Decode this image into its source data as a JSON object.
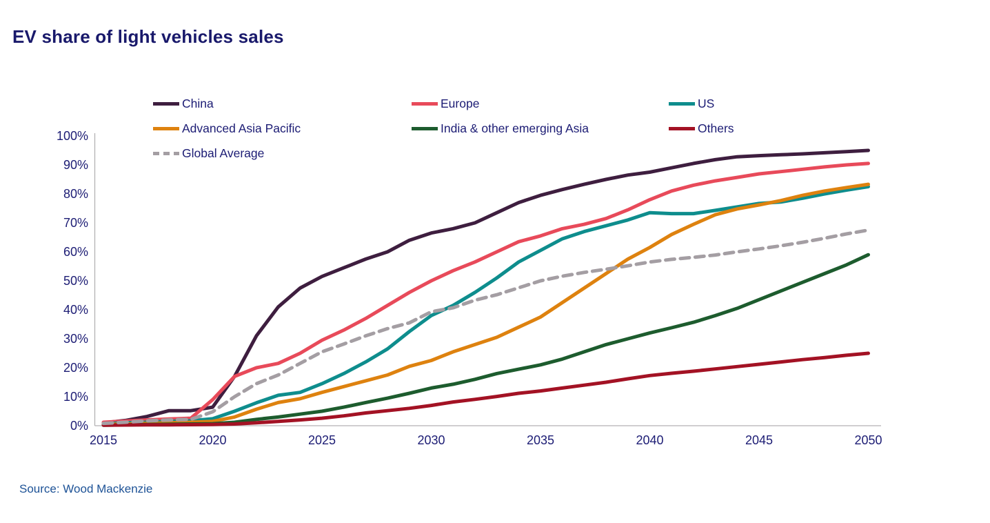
{
  "page": {
    "title": "EV share of light vehicles sales",
    "source": "Source: Wood Mackenzie"
  },
  "colors": {
    "title_text": "#19196b",
    "tick_text": "#1c1c74",
    "legend_text": "#1c1c74",
    "source_text": "#1d5296",
    "axis_line": "#b3b1b3",
    "background": "#ffffff"
  },
  "chart_data": {
    "type": "line",
    "title": "EV share of light vehicles sales",
    "xlabel": "",
    "ylabel": "",
    "grid": false,
    "legend_position": "top-left, 3 columns",
    "ylim": [
      0,
      100
    ],
    "y_ticks": [
      0,
      10,
      20,
      30,
      40,
      50,
      60,
      70,
      80,
      90,
      100
    ],
    "y_tick_suffix": "%",
    "x_ticks": [
      2015,
      2020,
      2025,
      2030,
      2035,
      2040,
      2045,
      2050
    ],
    "x": [
      2015,
      2016,
      2017,
      2018,
      2019,
      2020,
      2021,
      2022,
      2023,
      2024,
      2025,
      2026,
      2027,
      2028,
      2029,
      2030,
      2031,
      2032,
      2033,
      2034,
      2035,
      2036,
      2037,
      2038,
      2039,
      2040,
      2041,
      2042,
      2043,
      2044,
      2045,
      2046,
      2047,
      2048,
      2049,
      2050
    ],
    "series": [
      {
        "name": "China",
        "color": "#3e1e3f",
        "dash": false,
        "values": [
          1,
          1.8,
          3.2,
          5.2,
          5.2,
          6.4,
          17,
          31,
          41,
          47.5,
          51.5,
          54.5,
          57.5,
          60,
          64,
          66.5,
          68,
          70,
          73.5,
          77,
          79.5,
          81.5,
          83.3,
          85,
          86.5,
          87.5,
          89,
          90.5,
          91.8,
          92.8,
          93.2,
          93.5,
          93.8,
          94.2,
          94.6,
          95
        ]
      },
      {
        "name": "Europe",
        "color": "#e84a5a",
        "dash": false,
        "values": [
          1.2,
          1.6,
          2,
          2.3,
          2.6,
          9,
          17,
          20,
          21.5,
          25,
          29.5,
          33,
          37,
          41.5,
          46,
          50,
          53.5,
          56.5,
          60,
          63.5,
          65.5,
          68,
          69.5,
          71.5,
          74.5,
          78,
          81,
          83,
          84.5,
          85.7,
          86.9,
          87.7,
          88.5,
          89.3,
          90,
          90.5
        ]
      },
      {
        "name": "US",
        "color": "#0e8d8d",
        "dash": false,
        "values": [
          0.7,
          1,
          1.2,
          1.5,
          1.7,
          2.4,
          5,
          7.9,
          10.5,
          11.5,
          14.5,
          18,
          22,
          26.5,
          32.5,
          38,
          41.5,
          46,
          51,
          56.5,
          60.5,
          64.5,
          67,
          69,
          71,
          73.5,
          73.2,
          73.2,
          74.3,
          75.5,
          76.7,
          77.2,
          78.5,
          80,
          81.3,
          82.5
        ]
      },
      {
        "name": "Advanced Asia Pacific",
        "color": "#de820f",
        "dash": false,
        "values": [
          0.5,
          0.6,
          0.8,
          1,
          1.2,
          1.5,
          3,
          5.7,
          8,
          9.3,
          11.5,
          13.5,
          15.5,
          17.5,
          20.5,
          22.5,
          25.5,
          28,
          30.5,
          34,
          37.5,
          42.5,
          47.5,
          52.5,
          57.5,
          61.5,
          66,
          69.5,
          72.8,
          74.8,
          76.2,
          77.7,
          79.5,
          81,
          82.2,
          83.3
        ]
      },
      {
        "name": "India & other emerging Asia",
        "color": "#1d5c2e",
        "dash": false,
        "values": [
          0.2,
          0.3,
          0.4,
          0.5,
          0.6,
          0.7,
          1.2,
          2.2,
          3,
          4,
          5,
          6.4,
          8,
          9.5,
          11.2,
          13,
          14.3,
          16,
          18,
          19.5,
          21,
          23,
          25.5,
          28,
          30,
          32,
          33.8,
          35.7,
          38,
          40.5,
          43.5,
          46.5,
          49.5,
          52.5,
          55.5,
          59
        ]
      },
      {
        "name": "Others",
        "color": "#a31224",
        "dash": false,
        "values": [
          0.2,
          0.25,
          0.3,
          0.3,
          0.35,
          0.4,
          0.6,
          1,
          1.5,
          2,
          2.6,
          3.4,
          4.4,
          5.2,
          6,
          7,
          8.2,
          9.1,
          10.1,
          11.2,
          12,
          13,
          14,
          15,
          16.2,
          17.3,
          18.1,
          18.8,
          19.6,
          20.4,
          21.2,
          22,
          22.8,
          23.5,
          24.3,
          25
        ]
      },
      {
        "name": "Global Average",
        "color": "#a49ea3",
        "dash": true,
        "values": [
          0.8,
          1.2,
          1.7,
          2,
          2.2,
          4.8,
          10,
          14.5,
          17.5,
          21.5,
          25.5,
          28.2,
          31,
          33.5,
          35.5,
          39.3,
          40.7,
          43.3,
          45.2,
          47.6,
          50,
          51.6,
          52.9,
          54,
          55.2,
          56.5,
          57.4,
          58.1,
          58.9,
          60,
          61,
          62.1,
          63.3,
          64.7,
          66.2,
          67.5
        ]
      }
    ]
  }
}
